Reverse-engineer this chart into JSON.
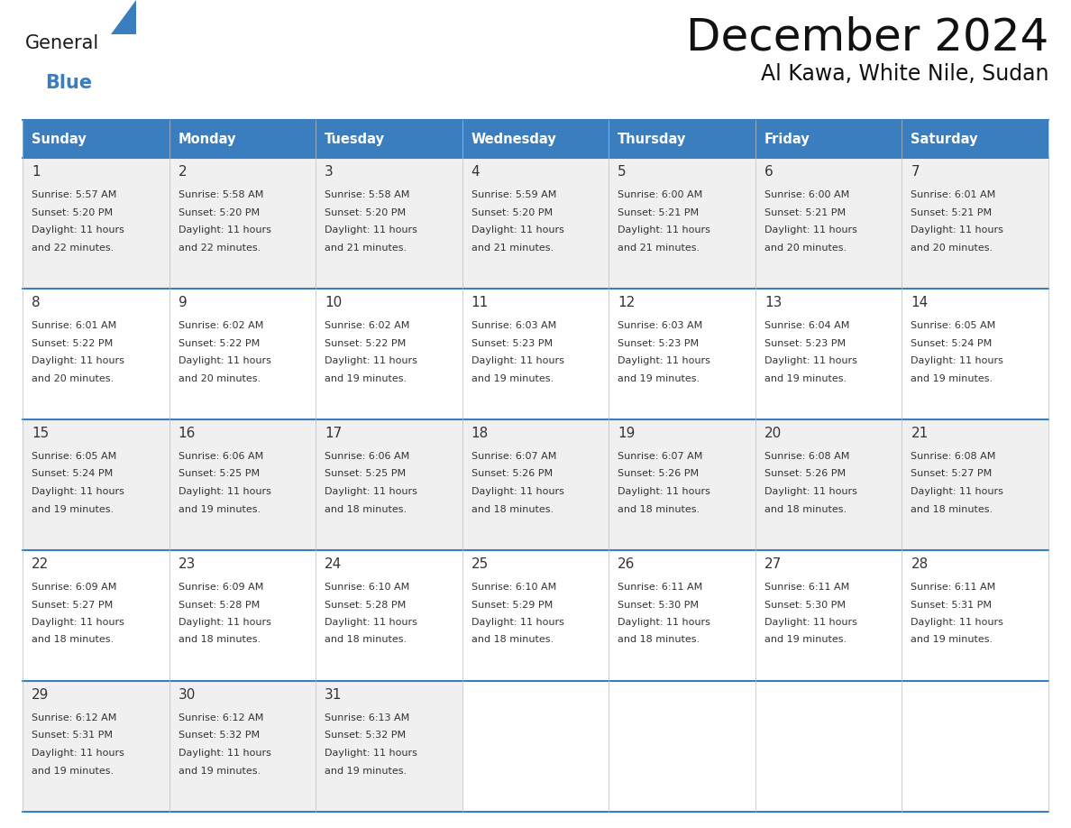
{
  "title": "December 2024",
  "subtitle": "Al Kawa, White Nile, Sudan",
  "header_color": "#3a7ebf",
  "header_text_color": "#ffffff",
  "border_color": "#3a7ebf",
  "text_color": "#333333",
  "day_names": [
    "Sunday",
    "Monday",
    "Tuesday",
    "Wednesday",
    "Thursday",
    "Friday",
    "Saturday"
  ],
  "days": [
    {
      "date": 1,
      "col": 0,
      "row": 0,
      "sunrise": "5:57 AM",
      "sunset": "5:20 PM",
      "daylight": "11 hours",
      "daylight2": "and 22 minutes."
    },
    {
      "date": 2,
      "col": 1,
      "row": 0,
      "sunrise": "5:58 AM",
      "sunset": "5:20 PM",
      "daylight": "11 hours",
      "daylight2": "and 22 minutes."
    },
    {
      "date": 3,
      "col": 2,
      "row": 0,
      "sunrise": "5:58 AM",
      "sunset": "5:20 PM",
      "daylight": "11 hours",
      "daylight2": "and 21 minutes."
    },
    {
      "date": 4,
      "col": 3,
      "row": 0,
      "sunrise": "5:59 AM",
      "sunset": "5:20 PM",
      "daylight": "11 hours",
      "daylight2": "and 21 minutes."
    },
    {
      "date": 5,
      "col": 4,
      "row": 0,
      "sunrise": "6:00 AM",
      "sunset": "5:21 PM",
      "daylight": "11 hours",
      "daylight2": "and 21 minutes."
    },
    {
      "date": 6,
      "col": 5,
      "row": 0,
      "sunrise": "6:00 AM",
      "sunset": "5:21 PM",
      "daylight": "11 hours",
      "daylight2": "and 20 minutes."
    },
    {
      "date": 7,
      "col": 6,
      "row": 0,
      "sunrise": "6:01 AM",
      "sunset": "5:21 PM",
      "daylight": "11 hours",
      "daylight2": "and 20 minutes."
    },
    {
      "date": 8,
      "col": 0,
      "row": 1,
      "sunrise": "6:01 AM",
      "sunset": "5:22 PM",
      "daylight": "11 hours",
      "daylight2": "and 20 minutes."
    },
    {
      "date": 9,
      "col": 1,
      "row": 1,
      "sunrise": "6:02 AM",
      "sunset": "5:22 PM",
      "daylight": "11 hours",
      "daylight2": "and 20 minutes."
    },
    {
      "date": 10,
      "col": 2,
      "row": 1,
      "sunrise": "6:02 AM",
      "sunset": "5:22 PM",
      "daylight": "11 hours",
      "daylight2": "and 19 minutes."
    },
    {
      "date": 11,
      "col": 3,
      "row": 1,
      "sunrise": "6:03 AM",
      "sunset": "5:23 PM",
      "daylight": "11 hours",
      "daylight2": "and 19 minutes."
    },
    {
      "date": 12,
      "col": 4,
      "row": 1,
      "sunrise": "6:03 AM",
      "sunset": "5:23 PM",
      "daylight": "11 hours",
      "daylight2": "and 19 minutes."
    },
    {
      "date": 13,
      "col": 5,
      "row": 1,
      "sunrise": "6:04 AM",
      "sunset": "5:23 PM",
      "daylight": "11 hours",
      "daylight2": "and 19 minutes."
    },
    {
      "date": 14,
      "col": 6,
      "row": 1,
      "sunrise": "6:05 AM",
      "sunset": "5:24 PM",
      "daylight": "11 hours",
      "daylight2": "and 19 minutes."
    },
    {
      "date": 15,
      "col": 0,
      "row": 2,
      "sunrise": "6:05 AM",
      "sunset": "5:24 PM",
      "daylight": "11 hours",
      "daylight2": "and 19 minutes."
    },
    {
      "date": 16,
      "col": 1,
      "row": 2,
      "sunrise": "6:06 AM",
      "sunset": "5:25 PM",
      "daylight": "11 hours",
      "daylight2": "and 19 minutes."
    },
    {
      "date": 17,
      "col": 2,
      "row": 2,
      "sunrise": "6:06 AM",
      "sunset": "5:25 PM",
      "daylight": "11 hours",
      "daylight2": "and 18 minutes."
    },
    {
      "date": 18,
      "col": 3,
      "row": 2,
      "sunrise": "6:07 AM",
      "sunset": "5:26 PM",
      "daylight": "11 hours",
      "daylight2": "and 18 minutes."
    },
    {
      "date": 19,
      "col": 4,
      "row": 2,
      "sunrise": "6:07 AM",
      "sunset": "5:26 PM",
      "daylight": "11 hours",
      "daylight2": "and 18 minutes."
    },
    {
      "date": 20,
      "col": 5,
      "row": 2,
      "sunrise": "6:08 AM",
      "sunset": "5:26 PM",
      "daylight": "11 hours",
      "daylight2": "and 18 minutes."
    },
    {
      "date": 21,
      "col": 6,
      "row": 2,
      "sunrise": "6:08 AM",
      "sunset": "5:27 PM",
      "daylight": "11 hours",
      "daylight2": "and 18 minutes."
    },
    {
      "date": 22,
      "col": 0,
      "row": 3,
      "sunrise": "6:09 AM",
      "sunset": "5:27 PM",
      "daylight": "11 hours",
      "daylight2": "and 18 minutes."
    },
    {
      "date": 23,
      "col": 1,
      "row": 3,
      "sunrise": "6:09 AM",
      "sunset": "5:28 PM",
      "daylight": "11 hours",
      "daylight2": "and 18 minutes."
    },
    {
      "date": 24,
      "col": 2,
      "row": 3,
      "sunrise": "6:10 AM",
      "sunset": "5:28 PM",
      "daylight": "11 hours",
      "daylight2": "and 18 minutes."
    },
    {
      "date": 25,
      "col": 3,
      "row": 3,
      "sunrise": "6:10 AM",
      "sunset": "5:29 PM",
      "daylight": "11 hours",
      "daylight2": "and 18 minutes."
    },
    {
      "date": 26,
      "col": 4,
      "row": 3,
      "sunrise": "6:11 AM",
      "sunset": "5:30 PM",
      "daylight": "11 hours",
      "daylight2": "and 18 minutes."
    },
    {
      "date": 27,
      "col": 5,
      "row": 3,
      "sunrise": "6:11 AM",
      "sunset": "5:30 PM",
      "daylight": "11 hours",
      "daylight2": "and 19 minutes."
    },
    {
      "date": 28,
      "col": 6,
      "row": 3,
      "sunrise": "6:11 AM",
      "sunset": "5:31 PM",
      "daylight": "11 hours",
      "daylight2": "and 19 minutes."
    },
    {
      "date": 29,
      "col": 0,
      "row": 4,
      "sunrise": "6:12 AM",
      "sunset": "5:31 PM",
      "daylight": "11 hours",
      "daylight2": "and 19 minutes."
    },
    {
      "date": 30,
      "col": 1,
      "row": 4,
      "sunrise": "6:12 AM",
      "sunset": "5:32 PM",
      "daylight": "11 hours",
      "daylight2": "and 19 minutes."
    },
    {
      "date": 31,
      "col": 2,
      "row": 4,
      "sunrise": "6:13 AM",
      "sunset": "5:32 PM",
      "daylight": "11 hours",
      "daylight2": "and 19 minutes."
    }
  ],
  "n_rows": 5,
  "n_cols": 7,
  "logo_general_color": "#1a1a1a",
  "logo_blue_color": "#3a7ebf",
  "logo_triangle_color": "#3a7ebf"
}
